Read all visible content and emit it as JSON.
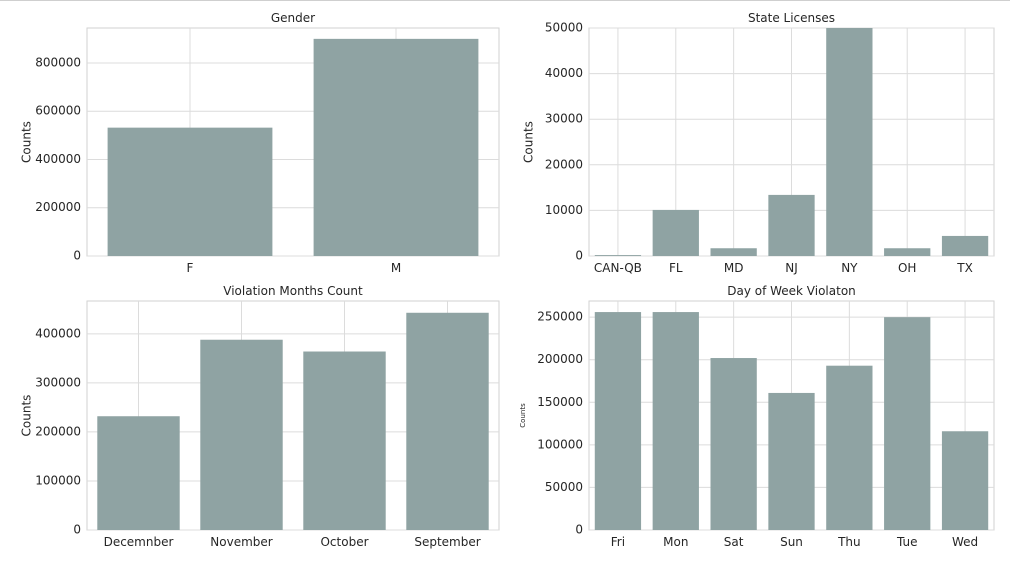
{
  "chart_data": [
    {
      "type": "bar",
      "title": "Gender",
      "xlabel": "",
      "ylabel": "Counts",
      "categories": [
        "F",
        "M"
      ],
      "values": [
        532000,
        900000
      ],
      "ylim": [
        0,
        945000
      ],
      "yticks": [
        0,
        200000,
        400000,
        600000,
        800000
      ],
      "grid": true
    },
    {
      "type": "bar",
      "title": "State Licenses",
      "xlabel": "",
      "ylabel": "Counts",
      "categories": [
        "CAN-QB",
        "FL",
        "MD",
        "NJ",
        "NY",
        "OH",
        "TX"
      ],
      "values": [
        200,
        10100,
        1700,
        13400,
        50000,
        1700,
        4400
      ],
      "ylim": [
        0,
        50000
      ],
      "yticks": [
        0,
        10000,
        20000,
        30000,
        40000,
        50000
      ],
      "grid": true
    },
    {
      "type": "bar",
      "title": "Violation Months Count",
      "xlabel": "",
      "ylabel": "Counts",
      "categories": [
        "Decemnber",
        "November",
        "October",
        "September"
      ],
      "values": [
        232000,
        388000,
        364000,
        443000
      ],
      "ylim": [
        0,
        467000
      ],
      "yticks": [
        0,
        100000,
        200000,
        300000,
        400000
      ],
      "grid": true
    },
    {
      "type": "bar",
      "title": "Day of Week Violaton",
      "xlabel": "",
      "ylabel": "Counts",
      "categories": [
        "Fri",
        "Mon",
        "Sat",
        "Sun",
        "Thu",
        "Tue",
        "Wed"
      ],
      "values": [
        256000,
        256000,
        202000,
        161000,
        193000,
        250000,
        116000
      ],
      "ylim": [
        0,
        269000
      ],
      "yticks": [
        0,
        50000,
        100000,
        150000,
        200000,
        250000
      ],
      "grid": true
    }
  ]
}
